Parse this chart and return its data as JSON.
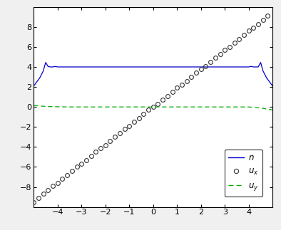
{
  "xlim": [
    -5,
    5
  ],
  "ylim": [
    -10,
    10
  ],
  "xticks": [
    -4,
    -3,
    -2,
    -1,
    0,
    1,
    2,
    3,
    4
  ],
  "yticks": [
    -8,
    -6,
    -4,
    -2,
    0,
    2,
    4,
    6,
    8
  ],
  "n_x": [
    -5.0,
    -4.75,
    -4.6,
    -4.5,
    -4.4,
    -4.3,
    -4.2,
    -4.1,
    -4.0,
    -3.9,
    -3.5,
    -3.0,
    -2.5,
    -2.0,
    -1.5,
    -1.0,
    -0.5,
    0.0,
    0.5,
    1.0,
    1.5,
    2.0,
    2.5,
    3.0,
    3.5,
    4.0,
    4.1,
    4.2,
    4.3,
    4.4,
    4.5,
    4.6,
    4.75,
    5.0
  ],
  "n_y": [
    2.1,
    2.9,
    3.6,
    4.45,
    4.05,
    4.0,
    4.0,
    4.05,
    4.0,
    4.0,
    4.0,
    4.0,
    4.0,
    4.0,
    4.0,
    4.0,
    4.0,
    4.0,
    4.0,
    4.0,
    4.0,
    4.0,
    4.0,
    4.0,
    4.0,
    4.0,
    4.05,
    4.0,
    4.0,
    4.0,
    4.45,
    3.6,
    2.9,
    2.1
  ],
  "ux_x": [
    -5.0,
    -4.8,
    -4.6,
    -4.4,
    -4.2,
    -4.0,
    -3.8,
    -3.6,
    -3.4,
    -3.2,
    -3.0,
    -2.8,
    -2.6,
    -2.4,
    -2.2,
    -2.0,
    -1.8,
    -1.6,
    -1.4,
    -1.2,
    -1.0,
    -0.8,
    -0.6,
    -0.4,
    -0.2,
    0.0,
    0.2,
    0.4,
    0.6,
    0.8,
    1.0,
    1.2,
    1.4,
    1.6,
    1.8,
    2.0,
    2.2,
    2.4,
    2.6,
    2.8,
    3.0,
    3.2,
    3.4,
    3.6,
    3.8,
    4.0,
    4.2,
    4.4,
    4.6,
    4.8
  ],
  "ux_y": [
    -9.5,
    -9.1,
    -8.7,
    -8.3,
    -7.9,
    -7.6,
    -7.2,
    -6.8,
    -6.4,
    -6.0,
    -5.7,
    -5.3,
    -4.9,
    -4.5,
    -4.1,
    -3.8,
    -3.4,
    -3.0,
    -2.6,
    -2.2,
    -1.9,
    -1.5,
    -1.1,
    -0.7,
    -0.3,
    0.0,
    0.3,
    0.7,
    1.1,
    1.5,
    1.9,
    2.2,
    2.6,
    3.0,
    3.4,
    3.8,
    4.1,
    4.5,
    4.9,
    5.3,
    5.7,
    6.0,
    6.4,
    6.8,
    7.2,
    7.6,
    7.9,
    8.3,
    8.7,
    9.1
  ],
  "uy_x": [
    -5.0,
    -4.5,
    -4.0,
    -3.5,
    -3.0,
    -2.5,
    -2.0,
    -1.5,
    -1.0,
    -0.5,
    0.0,
    0.5,
    1.0,
    1.5,
    2.0,
    2.5,
    3.0,
    3.5,
    4.0,
    4.5,
    5.0
  ],
  "uy_y": [
    0.15,
    0.05,
    0.02,
    0.0,
    0.0,
    0.0,
    0.0,
    0.0,
    0.0,
    0.0,
    0.0,
    0.0,
    0.0,
    0.0,
    0.0,
    0.0,
    0.0,
    0.0,
    0.0,
    -0.1,
    -0.3
  ],
  "n_color": "#0000cc",
  "ux_color": "#333333",
  "uy_color": "#00aa00",
  "bg_color": "#f0f0f0",
  "fig_width": 3.94,
  "fig_height": 3.23,
  "dpi": 100
}
